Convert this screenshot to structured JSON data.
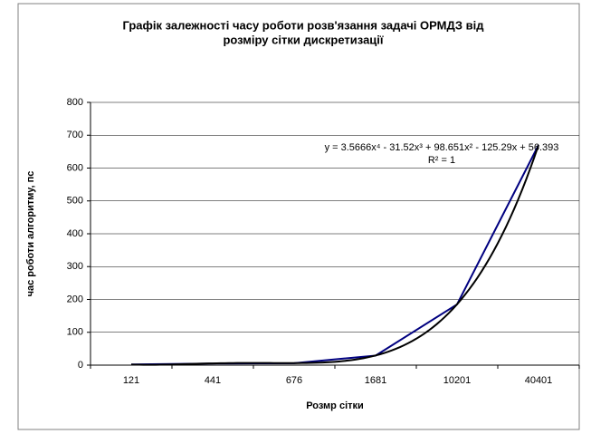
{
  "chart_data": {
    "type": "line",
    "title": [
      "Графік залежності часу роботи розв'язання задачі ОРМДЗ від",
      "розміру сітки дискретизації"
    ],
    "x_label": "Розмр сітки",
    "y_label": "час роботи алгоритму, пс",
    "categories": [
      "121",
      "441",
      "676",
      "1681",
      "10201",
      "40401"
    ],
    "series": [
      {
        "color": "#000080",
        "values": [
          2,
          5,
          6,
          29,
          185,
          670
        ]
      }
    ],
    "trendline": {
      "color": "#000000",
      "coefficients": [
        3.5666,
        -31.52,
        98.651,
        -125.29,
        56.393
      ],
      "equation": "y = 3.5666x⁴ - 31.52x³ + 98.651x² - 125.29x + 56.393",
      "r2": "R² = 1"
    },
    "ylim": [
      0,
      800
    ],
    "yticks": [
      0,
      100,
      200,
      300,
      400,
      500,
      600,
      700,
      800
    ],
    "grid": true
  }
}
